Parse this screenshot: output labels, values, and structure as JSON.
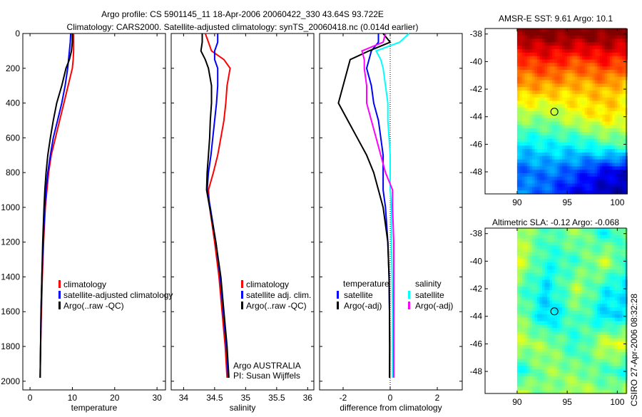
{
  "title_line1": "Argo profile: CS 5901145_11 18-Apr-2006 20060422_330 43.64S 93.722E",
  "title_line2": "Climatology: CARS2000. Satellite-adjusted climatology: synTS_20060418.nc (0.014d earlier)",
  "credit": "CSIRO 27-Apr-2006 08:32:28",
  "chart_data": [
    {
      "type": "line",
      "id": "temperature",
      "xlabel": "temperature",
      "ylabel": "",
      "xlim": [
        -1.7,
        32
      ],
      "ylim": [
        2050,
        0
      ],
      "xticks": [
        0,
        10,
        20,
        30
      ],
      "yticks": [
        0,
        200,
        400,
        600,
        800,
        1000,
        1200,
        1400,
        1600,
        1800,
        2000
      ],
      "legend": [
        "climatology",
        "satellite-adjusted climatology",
        "Argo(..raw -QC)"
      ],
      "legend_placement": "bottom-right",
      "depth": [
        0,
        50,
        100,
        150,
        200,
        300,
        400,
        500,
        600,
        700,
        800,
        900,
        1000,
        1200,
        1400,
        1600,
        1800,
        1980
      ],
      "series": [
        {
          "name": "climatology",
          "color": "#ff0000",
          "values": [
            10.3,
            10.3,
            10.3,
            10.2,
            10.0,
            9.0,
            8.0,
            7.0,
            6.0,
            5.0,
            4.4,
            4.0,
            3.6,
            3.2,
            2.9,
            2.7,
            2.5,
            2.4
          ]
        },
        {
          "name": "satellite-adjusted climatology",
          "color": "#0000ff",
          "values": [
            9.6,
            9.5,
            9.3,
            9.1,
            8.9,
            8.3,
            7.5,
            6.5,
            5.5,
            4.8,
            4.2,
            3.8,
            3.5,
            3.1,
            2.8,
            2.6,
            2.5,
            2.4
          ]
        },
        {
          "name": "Argo(..raw -QC)",
          "color": "#000000",
          "values": [
            10.0,
            10.0,
            9.8,
            9.3,
            8.5,
            7.5,
            6.3,
            5.5,
            4.8,
            4.2,
            3.8,
            3.5,
            3.3,
            3.0,
            2.8,
            2.6,
            2.5,
            2.4
          ]
        }
      ]
    },
    {
      "type": "line",
      "id": "salinity",
      "xlabel": "salinity",
      "xlim": [
        33.8,
        36.1
      ],
      "ylim": [
        2050,
        0
      ],
      "xticks": [
        34,
        34.5,
        35,
        35.5,
        36
      ],
      "xticklabels": [
        "34",
        "34.5",
        "35",
        "35.5",
        "36"
      ],
      "legend": [
        "climatology",
        "satellite adj. clim.",
        "Argo(..raw -QC)"
      ],
      "legend_placement": "bottom-right",
      "annotation": [
        "Argo AUSTRALIA",
        "PI: Susan Wijffels"
      ],
      "depth": [
        0,
        50,
        100,
        150,
        200,
        300,
        400,
        500,
        600,
        700,
        800,
        900,
        1000,
        1200,
        1400,
        1600,
        1800,
        1980
      ],
      "series": [
        {
          "name": "climatology",
          "color": "#ff0000",
          "values": [
            34.35,
            34.4,
            34.45,
            34.65,
            34.75,
            34.7,
            34.68,
            34.65,
            34.6,
            34.55,
            34.48,
            34.4,
            34.42,
            34.5,
            34.57,
            34.62,
            34.67,
            34.7
          ]
        },
        {
          "name": "satellite adj. clim.",
          "color": "#0000ff",
          "values": [
            34.55,
            34.55,
            34.5,
            34.5,
            34.55,
            34.55,
            34.53,
            34.5,
            34.47,
            34.44,
            34.4,
            34.38,
            34.43,
            34.52,
            34.59,
            34.64,
            34.69,
            34.72
          ]
        },
        {
          "name": "Argo(..raw -QC)",
          "color": "#000000",
          "values": [
            34.3,
            34.3,
            34.28,
            34.35,
            34.4,
            34.45,
            34.45,
            34.43,
            34.42,
            34.4,
            34.38,
            34.37,
            34.42,
            34.52,
            34.6,
            34.65,
            34.7,
            34.73
          ]
        }
      ]
    },
    {
      "type": "line",
      "id": "difference",
      "xlabel": "difference from climatology",
      "xlim": [
        -3,
        3.06
      ],
      "ylim": [
        2050,
        0
      ],
      "xticks": [
        -2,
        0,
        2
      ],
      "legend_temperature_heading": "temperature",
      "legend_salinity_heading": "salinity",
      "legend_placement": "bottom",
      "depth": [
        0,
        50,
        100,
        150,
        200,
        300,
        400,
        500,
        600,
        700,
        800,
        900,
        1000,
        1200,
        1400,
        1600,
        1800,
        1980
      ],
      "series": [
        {
          "name": "satellite",
          "group": "temperature",
          "color": "#0000ff",
          "values": [
            -0.5,
            -0.5,
            -0.8,
            -0.9,
            -1.0,
            -0.8,
            -0.7,
            -0.5,
            -0.4,
            -0.3,
            -0.3,
            -0.3,
            -0.2,
            -0.1,
            -0.05,
            -0.03,
            -0.02,
            -0.02
          ]
        },
        {
          "name": "Argo(-adj)",
          "group": "temperature",
          "color": "#000000",
          "values": [
            -0.3,
            0.0,
            -0.9,
            -1.7,
            -1.8,
            -2.0,
            -2.2,
            -1.8,
            -1.4,
            -1.0,
            -0.7,
            -0.5,
            -0.3,
            -0.1,
            -0.05,
            -0.03,
            -0.02,
            -0.03
          ]
        },
        {
          "name": "satellite",
          "group": "salinity",
          "color": "#00ffff",
          "values": [
            0.8,
            0.4,
            -0.6,
            -0.4,
            -0.3,
            -0.2,
            -0.1,
            -0.1,
            -0.05,
            0.0,
            0.0,
            0.0,
            0.05,
            0.05,
            0.08,
            0.1,
            0.1,
            0.1
          ]
        },
        {
          "name": "Argo(-adj)",
          "group": "salinity",
          "color": "#ff00ff",
          "values": [
            -0.2,
            -0.3,
            -1.2,
            -1.1,
            -1.1,
            -1.0,
            -1.0,
            -0.8,
            -0.6,
            -0.4,
            -0.2,
            0.1,
            0.1,
            0.15,
            0.15,
            0.15,
            0.15,
            0.15
          ]
        }
      ]
    },
    {
      "type": "heatmap",
      "id": "sst-map",
      "title": "AMSR-E SST: 9.61 Argo: 10.1",
      "xlim": [
        86.8,
        100.9
      ],
      "ylim": [
        -49.6,
        -37.6
      ],
      "xticks": [
        90,
        95,
        100
      ],
      "yticks": [
        -38,
        -40,
        -42,
        -44,
        -46,
        -48
      ],
      "data_lon_range": [
        90,
        100.9
      ],
      "marker": {
        "lon": 93.72,
        "lat": -43.64
      },
      "clim": [
        4,
        14
      ],
      "grid_lats": [
        -38,
        -40,
        -42,
        -44,
        -46,
        -48,
        -49.6
      ],
      "grid_lons": [
        90,
        93,
        96,
        99,
        100.9
      ],
      "values": [
        [
          14,
          14,
          14,
          14,
          14
        ],
        [
          12,
          12.5,
          12,
          12.5,
          12
        ],
        [
          11,
          11,
          10.8,
          11,
          10.5
        ],
        [
          9.5,
          9.2,
          10,
          10.5,
          10.2
        ],
        [
          7.5,
          7.8,
          7.8,
          8.5,
          8.5
        ],
        [
          6.2,
          6.5,
          6,
          5,
          5
        ],
        [
          7,
          6,
          5,
          4.5,
          4.5
        ]
      ]
    },
    {
      "type": "heatmap",
      "id": "sla-map",
      "title": "Altimetric SLA: -0.12 Argo: -0.068",
      "xlim": [
        86.8,
        100.9
      ],
      "ylim": [
        -49.6,
        -37.6
      ],
      "xticks": [
        90,
        95,
        100
      ],
      "yticks": [
        -38,
        -40,
        -42,
        -44,
        -46,
        -48
      ],
      "data_lon_range": [
        90,
        100.9
      ],
      "marker": {
        "lon": 93.72,
        "lat": -43.64
      },
      "clim": [
        -0.4,
        0.4
      ],
      "grid_lats": [
        -38,
        -40,
        -42,
        -44,
        -46,
        -48,
        -49.6
      ],
      "grid_lons": [
        90,
        93,
        96,
        99,
        100.9
      ],
      "values": [
        [
          0.05,
          -0.05,
          0.02,
          -0.1,
          0.0
        ],
        [
          0.08,
          -0.08,
          -0.05,
          0.06,
          -0.08
        ],
        [
          -0.02,
          -0.12,
          0.04,
          -0.1,
          -0.12
        ],
        [
          0.03,
          -0.15,
          -0.02,
          -0.14,
          -0.1
        ],
        [
          0.05,
          0.02,
          -0.08,
          0.08,
          0.06
        ],
        [
          -0.1,
          0.02,
          0.0,
          -0.05,
          -0.08
        ],
        [
          0.08,
          -0.02,
          0.05,
          0.0,
          0.06
        ]
      ]
    }
  ]
}
